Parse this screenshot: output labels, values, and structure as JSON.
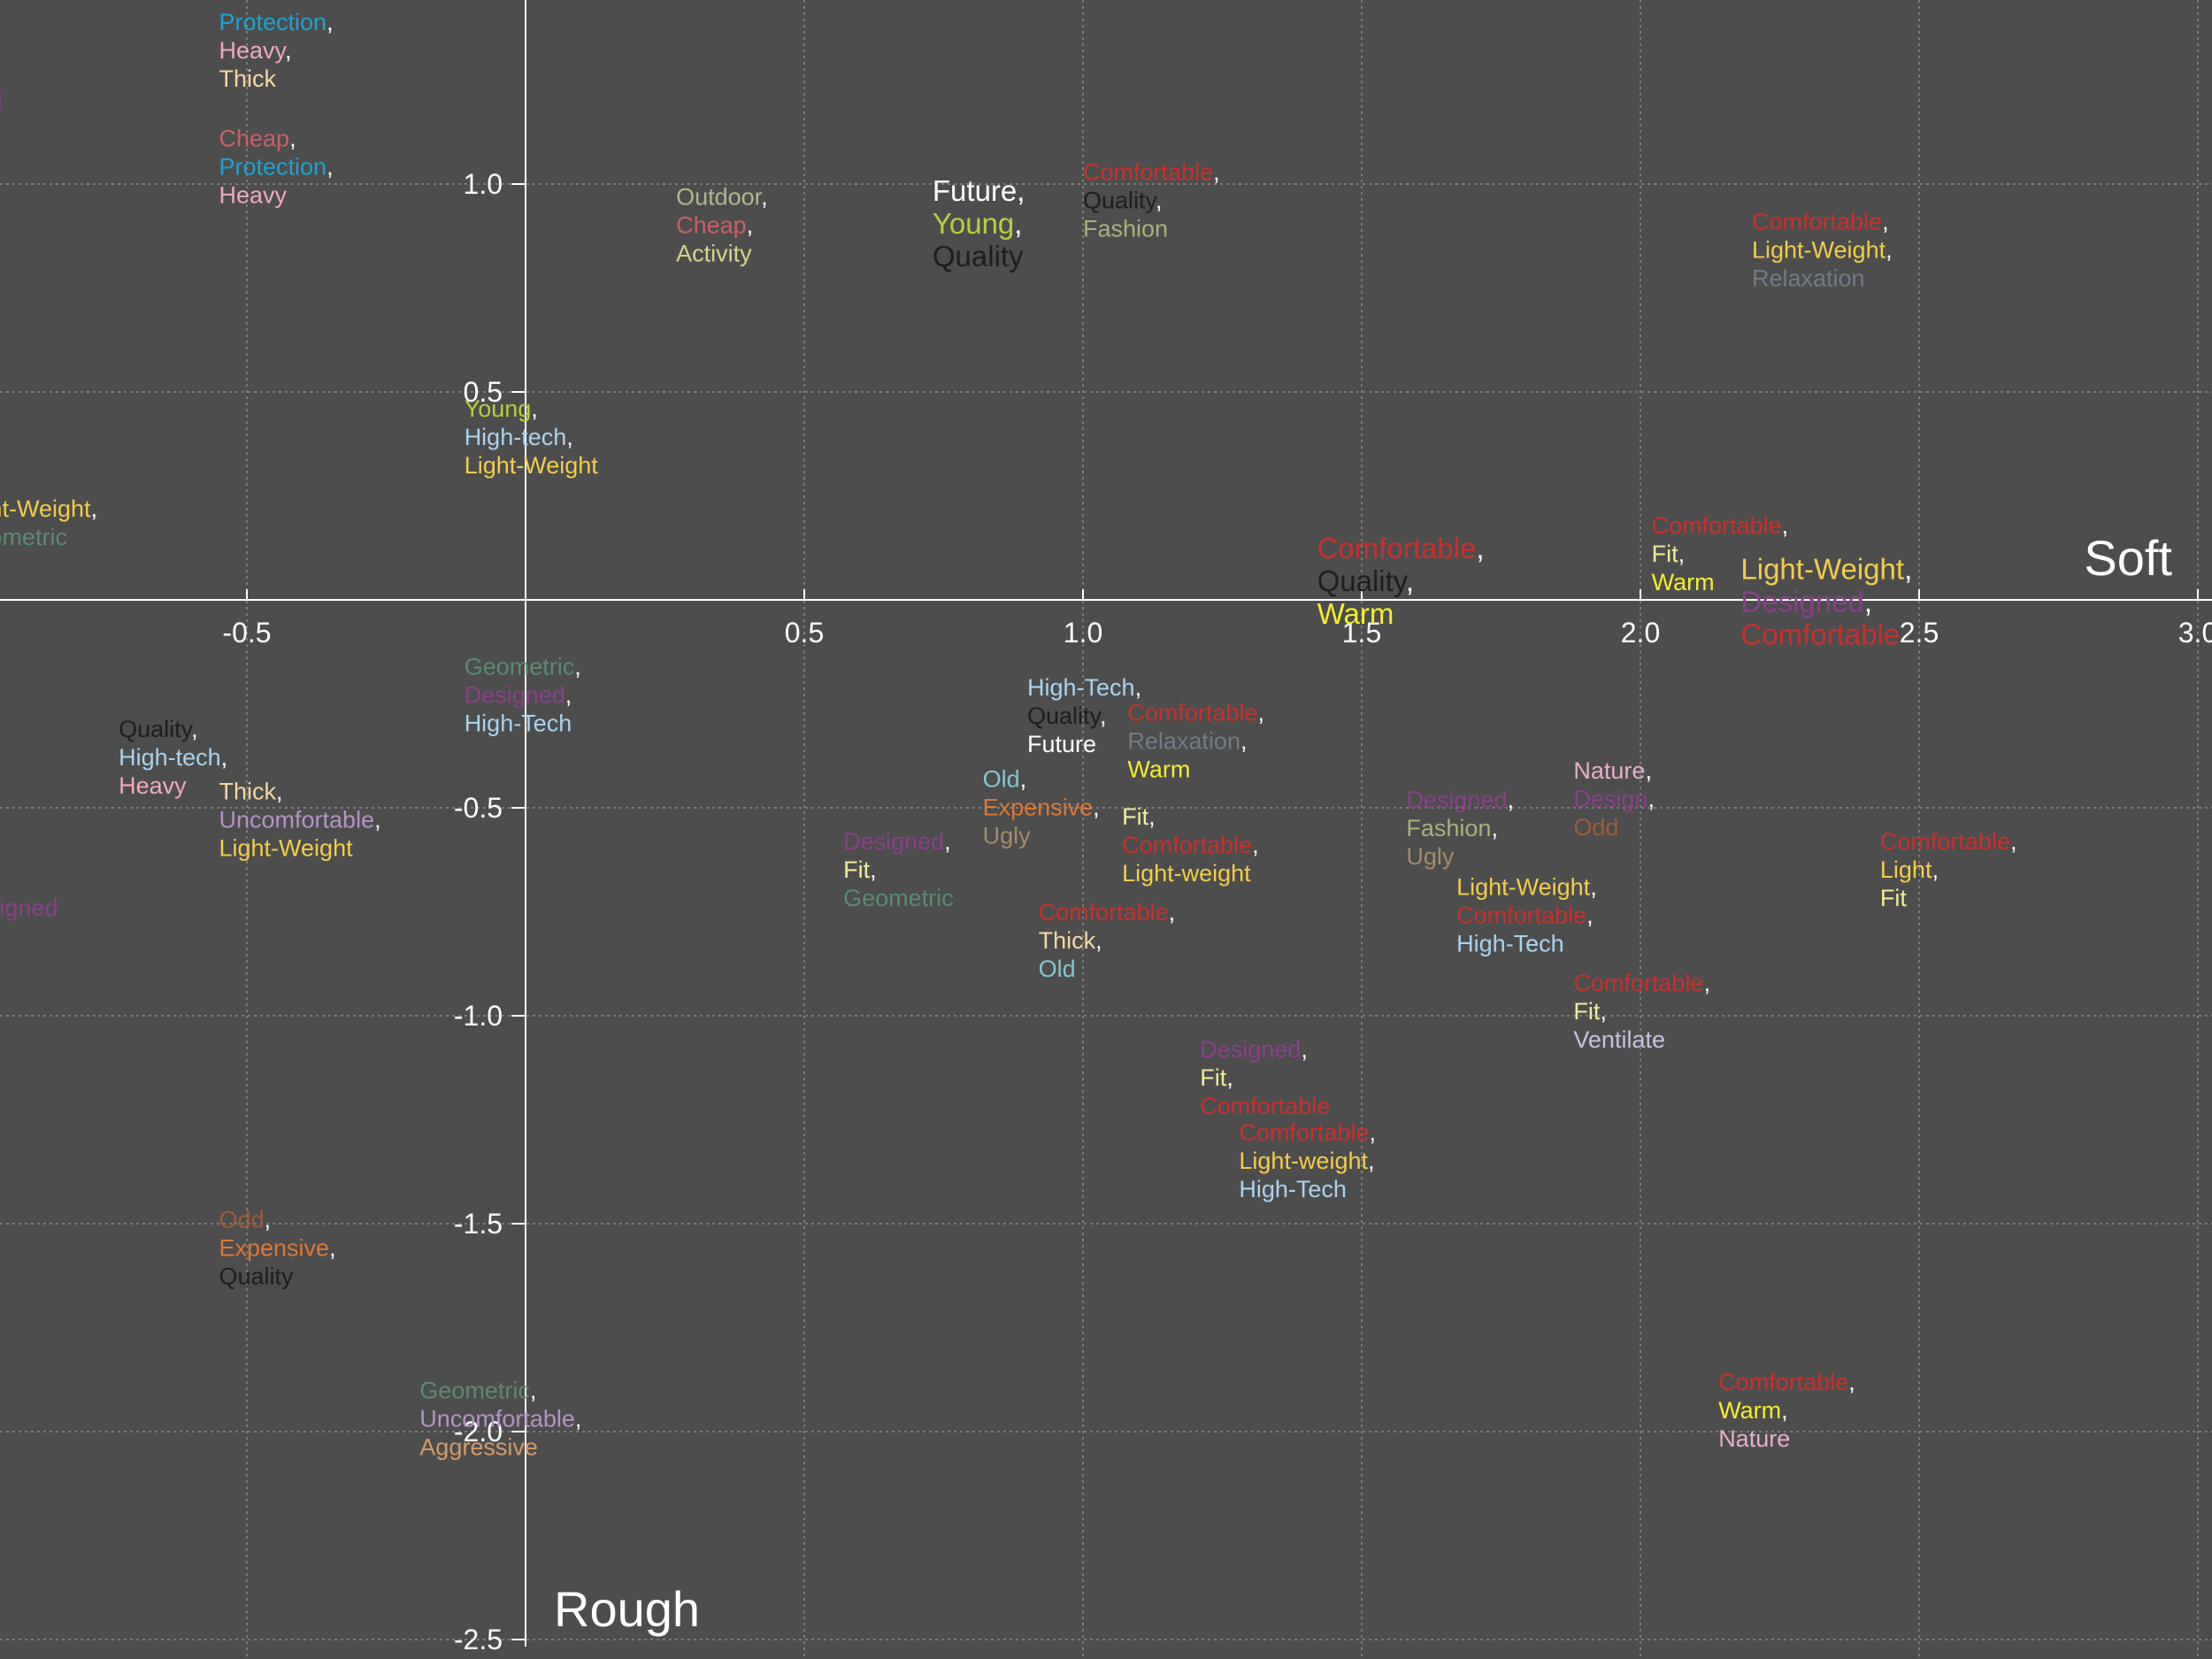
{
  "colors": {
    "background": "#4d4d4d",
    "axis": "#ffffff",
    "grid": "#8a8a8a",
    "tick_text": "#ffffff"
  },
  "palette": {
    "Comfortable": "#c8302c",
    "Fit": "#f0ec9a",
    "Warm": "#f5ed2d",
    "Light-Weight": "#f3cd4a",
    "Light-weight": "#f3cd4a",
    "Light": "#f3cd4a",
    "Designed": "#8a3f8a",
    "Design": "#8a3f8a",
    "Quality": "#1e1e1e",
    "Fashion": "#a6b27a",
    "Relaxation": "#717c88",
    "High-Tech": "#a9d3ef",
    "High-tech": "#a9d3ef",
    "Future": "#ffffff",
    "Young": "#b5cf3c",
    "Outdoor": "#b5b58a",
    "Cheap": "#c9616a",
    "Activity": "#d6d48a",
    "Protection": "#1ba3d8",
    "Heavy": "#f0a9bb",
    "Thick": "#f5d8a2",
    "Geometric": "#5c8a72",
    "Old": "#84c6cf",
    "Expensive": "#dd7a35",
    "Ugly": "#a48c6a",
    "Uncomfortable": "#b493c7",
    "Odd": "#a15a3a",
    "Aggressive": "#d79a66",
    "Nature": "#e7aecb",
    "Ventilate": "#c5c3de"
  },
  "chart_data": {
    "type": "scatter",
    "title": "",
    "xlabel": "Soft",
    "ylabel": "Rough",
    "xlim": [
      -0.95,
      3.07
    ],
    "ylim": [
      -2.5,
      1.45
    ],
    "grid": true,
    "x_ticks": [
      -0.5,
      0.5,
      1.0,
      1.5,
      2.0,
      2.5,
      3.0
    ],
    "x_tick_labels": [
      "-0.5",
      "0.5",
      "1.0",
      "1.5",
      "2.0",
      "2.5",
      "3.0"
    ],
    "y_ticks": [
      1.0,
      0.5,
      -0.5,
      -1.0,
      -1.5,
      -2.0,
      -2.5
    ],
    "y_tick_labels": [
      "1.0",
      "0.5",
      "-0.5",
      "-1.0",
      "-1.5",
      "-2.0",
      "-2.5"
    ],
    "points": [
      {
        "x": -0.55,
        "y": 1.37,
        "words": [
          "Protection",
          "Heavy",
          "Thick"
        ]
      },
      {
        "x": -0.55,
        "y": 1.09,
        "words": [
          "Cheap",
          "Protection",
          "Heavy"
        ]
      },
      {
        "x": -1.12,
        "y": 1.18,
        "words": [
          "Designed"
        ]
      },
      {
        "x": 0.27,
        "y": 0.95,
        "words": [
          "Outdoor",
          "Cheap",
          "Activity"
        ]
      },
      {
        "x": 0.73,
        "y": 0.96,
        "words": [
          "Future",
          "Young",
          "Quality"
        ],
        "large": true
      },
      {
        "x": 1.0,
        "y": 1.01,
        "words": [
          "Comfortable",
          "Quality",
          "Fashion"
        ]
      },
      {
        "x": 2.2,
        "y": 0.89,
        "words": [
          "Comfortable",
          "Light-Weight",
          "Relaxation"
        ]
      },
      {
        "x": -0.11,
        "y": 0.44,
        "words": [
          "Young",
          "High-tech",
          "Light-Weight"
        ]
      },
      {
        "x": -1.02,
        "y": 0.2,
        "words": [
          "Light-Weight",
          "Geometric"
        ]
      },
      {
        "x": 1.42,
        "y": 0.1,
        "words": [
          "Comfortable",
          "Quality",
          "Warm"
        ],
        "large": true
      },
      {
        "x": 2.02,
        "y": 0.16,
        "words": [
          "Comfortable",
          "Fit",
          "Warm"
        ]
      },
      {
        "x": 2.18,
        "y": 0.05,
        "words": [
          "Light-Weight",
          "Designed",
          "Comfortable"
        ],
        "large": true
      },
      {
        "x": -0.11,
        "y": -0.18,
        "words": [
          "Geometric",
          "Designed",
          "High-Tech"
        ]
      },
      {
        "x": -0.73,
        "y": -0.33,
        "words": [
          "Quality",
          "High-tech",
          "Heavy"
        ]
      },
      {
        "x": -0.55,
        "y": -0.48,
        "words": [
          "Thick",
          "Uncomfortable",
          "Light-Weight"
        ]
      },
      {
        "x": 0.9,
        "y": -0.23,
        "words": [
          "High-Tech",
          "Quality",
          "Future"
        ]
      },
      {
        "x": 1.08,
        "y": -0.29,
        "words": [
          "Comfortable",
          "Relaxation",
          "Warm"
        ]
      },
      {
        "x": 0.82,
        "y": -0.45,
        "words": [
          "Old",
          "Expensive",
          "Ugly"
        ]
      },
      {
        "x": 0.57,
        "y": -0.6,
        "words": [
          "Designed",
          "Fit",
          "Geometric"
        ]
      },
      {
        "x": 1.07,
        "y": -0.54,
        "words": [
          "Fit",
          "Comfortable",
          "Light-weight"
        ]
      },
      {
        "x": 0.92,
        "y": -0.77,
        "words": [
          "Comfortable",
          "Thick",
          "Old"
        ]
      },
      {
        "x": 1.58,
        "y": -0.5,
        "words": [
          "Designed",
          "Fashion",
          "Ugly"
        ]
      },
      {
        "x": 1.88,
        "y": -0.43,
        "words": [
          "Nature",
          "Design",
          "Odd"
        ]
      },
      {
        "x": 1.67,
        "y": -0.71,
        "words": [
          "Light-Weight",
          "Comfortable",
          "High-Tech"
        ]
      },
      {
        "x": 2.43,
        "y": -0.6,
        "words": [
          "Comfortable",
          "Light",
          "Fit"
        ]
      },
      {
        "x": 1.88,
        "y": -0.94,
        "words": [
          "Comfortable",
          "Fit",
          "Ventilate"
        ]
      },
      {
        "x": 1.21,
        "y": -1.1,
        "words": [
          "Designed",
          "Fit",
          "Comfortable"
        ]
      },
      {
        "x": 1.28,
        "y": -1.3,
        "words": [
          "Comfortable",
          "Light-weight",
          "High-Tech"
        ]
      },
      {
        "x": -0.55,
        "y": -1.51,
        "words": [
          "Odd",
          "Expensive",
          "Quality"
        ]
      },
      {
        "x": -0.19,
        "y": -1.92,
        "words": [
          "Geometric",
          "Uncomfortable",
          "Aggressive"
        ]
      },
      {
        "x": 2.14,
        "y": -1.9,
        "words": [
          "Comfortable",
          "Warm",
          "Nature"
        ]
      },
      {
        "x": -1.02,
        "y": -0.76,
        "words": [
          "Designed"
        ]
      }
    ]
  }
}
